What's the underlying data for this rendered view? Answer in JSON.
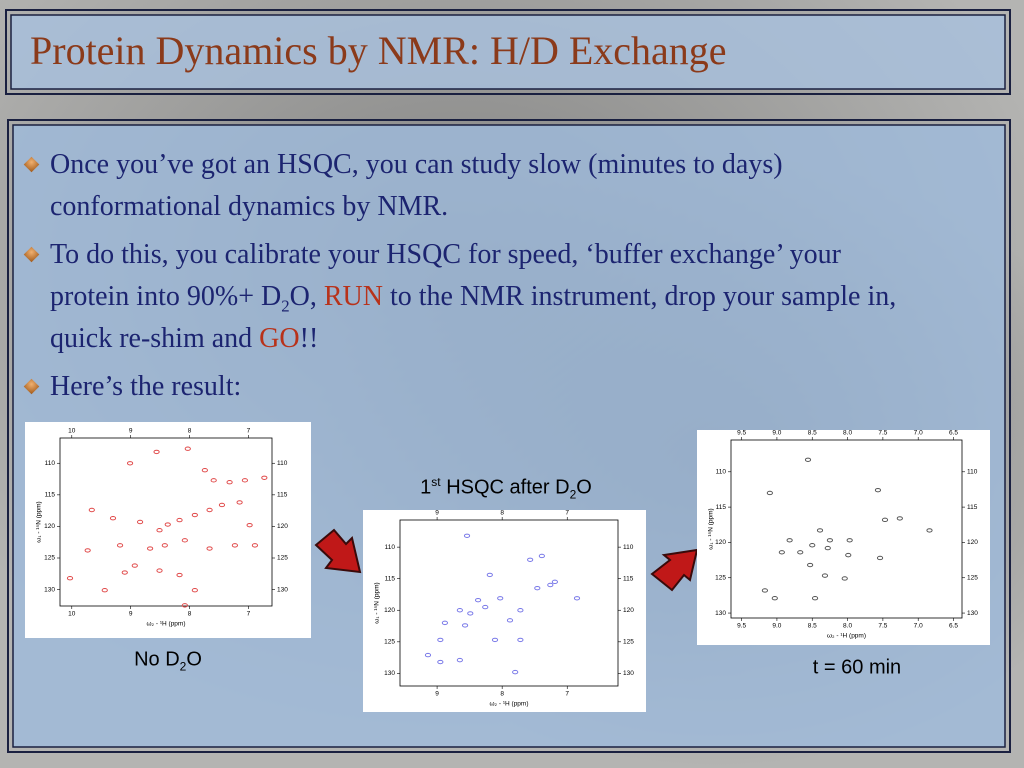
{
  "title": "Protein Dynamics by NMR: H/D Exchange",
  "bullets": [
    [
      {
        "text": "Once you’ve got an HSQC, you can study slow (minutes to days) conformational dynamics by NMR."
      }
    ],
    [
      {
        "text": "To do this, you calibrate your HSQC for speed, ‘buffer exchange’ your protein into 90%+ D"
      },
      {
        "text": "2",
        "style": "sub"
      },
      {
        "text": "O, "
      },
      {
        "text": "RUN",
        "style": "red"
      },
      {
        "text": " to the NMR instrument, drop your sample in, quick re-shim and "
      },
      {
        "text": "GO",
        "style": "red"
      },
      {
        "text": "!!"
      }
    ],
    [
      {
        "text": "Here’s the result:"
      }
    ]
  ],
  "spectra": [
    {
      "caption": [
        {
          "text": "No D"
        },
        {
          "text": "2",
          "style": "sub"
        },
        {
          "text": "O"
        }
      ],
      "xlim": [
        10.2,
        6.6
      ],
      "ylim": [
        106,
        132.6
      ],
      "xticks": [
        10,
        9,
        8,
        7
      ],
      "yticks": [
        110,
        115,
        120,
        125,
        130
      ],
      "xlabel": "ω₂ - ¹H (ppm)",
      "ylabel": "ω₁ - ¹⁵N (ppm)",
      "color": "#e04848",
      "peaks": {
        "x": [
          9.01,
          8.56,
          8.03,
          7.74,
          7.59,
          7.32,
          7.06,
          6.73,
          9.66,
          9.3,
          8.84,
          8.51,
          8.37,
          8.17,
          7.91,
          7.66,
          7.45,
          7.15,
          6.98,
          9.18,
          8.67,
          8.42,
          8.08,
          7.66,
          7.23,
          10.03,
          9.44,
          9.1,
          8.93,
          8.51,
          8.17,
          7.91,
          6.89,
          9.73,
          8.08
        ],
        "y": [
          110.0,
          108.2,
          107.7,
          111.1,
          112.7,
          113.0,
          112.7,
          112.3,
          117.4,
          118.7,
          119.3,
          120.6,
          119.7,
          119.0,
          118.2,
          117.4,
          116.6,
          116.2,
          119.8,
          123.0,
          123.5,
          123.0,
          122.2,
          123.5,
          123.0,
          128.2,
          130.1,
          127.3,
          126.2,
          127.0,
          127.7,
          130.1,
          123.0,
          123.8,
          132.5
        ]
      }
    },
    {
      "caption": [
        {
          "text": "1"
        },
        {
          "text": "st",
          "style": "sup"
        },
        {
          "text": " HSQC after D"
        },
        {
          "text": "2",
          "style": "sub"
        },
        {
          "text": "O"
        }
      ],
      "xlim": [
        9.57,
        6.22
      ],
      "ylim": [
        105.7,
        132
      ],
      "xticks": [
        9,
        8,
        7
      ],
      "yticks": [
        110,
        115,
        120,
        125,
        130
      ],
      "xlabel": "ω₂ - ¹H (ppm)",
      "ylabel": "ω₁ - ¹⁵N (ppm)",
      "color": "#7878e8",
      "peaks": {
        "x": [
          8.54,
          8.19,
          7.57,
          7.46,
          7.26,
          6.85,
          8.65,
          8.49,
          8.37,
          8.26,
          8.03,
          7.88,
          8.88,
          8.95,
          8.57,
          8.11,
          7.72,
          9.14,
          8.95,
          8.65,
          7.8,
          7.39,
          7.19,
          7.72
        ],
        "y": [
          108.2,
          114.4,
          112.0,
          116.5,
          116.0,
          118.1,
          120.0,
          120.5,
          118.4,
          119.5,
          118.1,
          121.6,
          122.0,
          124.7,
          122.4,
          124.7,
          124.7,
          127.1,
          128.2,
          127.9,
          129.8,
          111.4,
          115.5,
          120.0
        ]
      }
    },
    {
      "caption": [
        {
          "text": "t = 60 min"
        }
      ],
      "xlim": [
        9.65,
        6.38
      ],
      "ylim": [
        105.5,
        130.7
      ],
      "xticks": [
        9.5,
        {
          "value": 9,
          "label": "9.0"
        },
        8.5,
        {
          "value": 8,
          "label": "8.0"
        },
        7.5,
        {
          "value": 7,
          "label": "7.0"
        },
        6.5
      ],
      "yticks": [
        110,
        115,
        120,
        125,
        130
      ],
      "xlabel": "ω₂ - ¹H (ppm)",
      "ylabel": "ω₁ - ¹⁵N (ppm)",
      "color": "#555555",
      "peaks": {
        "x": [
          8.56,
          9.1,
          7.57,
          7.47,
          7.26,
          8.39,
          8.5,
          8.28,
          8.67,
          8.25,
          7.99,
          8.04,
          8.32,
          7.54,
          8.93,
          8.82,
          9.17,
          9.03,
          8.46,
          6.84,
          7.97,
          8.53
        ],
        "y": [
          108.3,
          113.0,
          112.6,
          116.8,
          116.6,
          118.3,
          120.4,
          120.8,
          121.4,
          119.7,
          121.8,
          125.1,
          124.7,
          122.2,
          121.4,
          119.7,
          126.8,
          127.9,
          127.9,
          118.3,
          119.7,
          123.2
        ]
      }
    }
  ]
}
